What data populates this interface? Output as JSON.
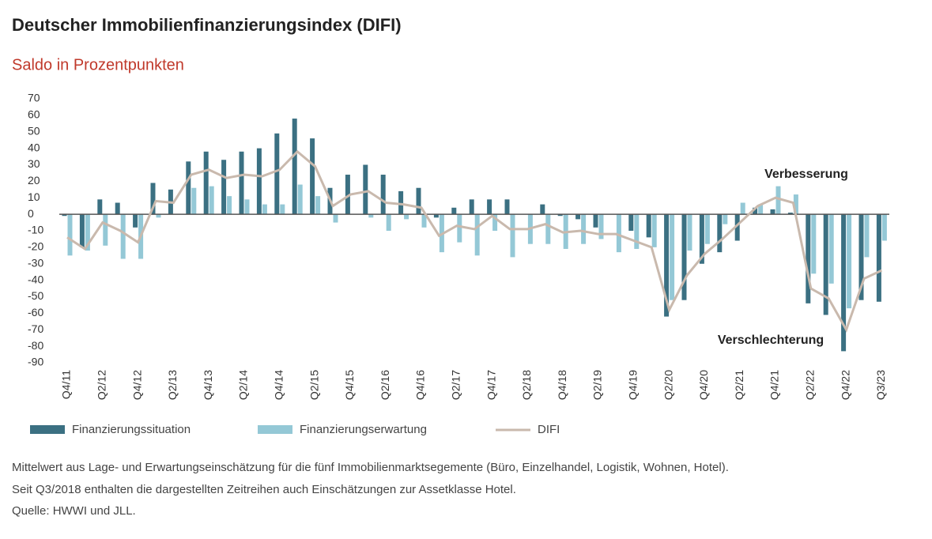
{
  "chart_data": {
    "type": "bar_line",
    "title": "Deutscher Immobilienfinanzierungsindex (DIFI)",
    "subtitle": "Saldo in Prozentpunkten",
    "categories": [
      "Q4/11",
      null,
      "Q2/12",
      null,
      "Q4/12",
      null,
      "Q2/13",
      null,
      "Q4/13",
      null,
      "Q2/14",
      null,
      "Q4/14",
      null,
      "Q2/15",
      null,
      "Q4/15",
      null,
      "Q2/16",
      null,
      "Q4/16",
      null,
      "Q2/17",
      null,
      "Q4/17",
      null,
      "Q2/18",
      null,
      "Q4/18",
      null,
      "Q2/19",
      null,
      "Q4/19",
      null,
      "Q2/20",
      null,
      "Q4/20",
      null,
      "Q2/21",
      null,
      "Q4/21",
      null,
      "Q2/22",
      null,
      "Q4/22",
      null,
      "Q3/23"
    ],
    "series": [
      {
        "name": "Finanzierungssituation",
        "kind": "bar",
        "color": "#3b7082",
        "values": [
          -1,
          -20,
          9,
          7,
          -8,
          19,
          15,
          32,
          38,
          33,
          38,
          40,
          49,
          58,
          46,
          16,
          24,
          30,
          24,
          14,
          16,
          -2,
          4,
          9,
          9,
          9,
          0,
          6,
          -1,
          -3,
          -8,
          0,
          -10,
          -14,
          -62,
          -52,
          -30,
          -23,
          -16,
          4,
          3,
          1,
          -54,
          -61,
          -83,
          -52,
          -53
        ]
      },
      {
        "name": "Finanzierungserwartung",
        "kind": "bar",
        "color": "#94c8d6",
        "values": [
          -25,
          -22,
          -19,
          -27,
          -27,
          -2,
          0,
          16,
          17,
          11,
          9,
          6,
          6,
          18,
          11,
          -5,
          0,
          -2,
          -10,
          -3,
          -8,
          -23,
          -17,
          -25,
          -10,
          -26,
          -18,
          -18,
          -21,
          -18,
          -15,
          -23,
          -21,
          -20,
          -52,
          -22,
          -18,
          -6,
          7,
          6,
          17,
          12,
          -36,
          -42,
          -57,
          -26,
          -16
        ]
      },
      {
        "name": "DIFI",
        "kind": "line",
        "color": "#c9b9ad",
        "values": [
          -14,
          -21,
          -5,
          -10,
          -17,
          8,
          7,
          24,
          27,
          22,
          24,
          23,
          27,
          38,
          29,
          5,
          12,
          14,
          7,
          6,
          4,
          -13,
          -7,
          -9,
          -1,
          -9,
          -9,
          -6,
          -11,
          -10,
          -12,
          -12,
          -16,
          -20,
          -58,
          -37,
          -24,
          -15,
          -5,
          5,
          10,
          7,
          -45,
          -51,
          -70,
          -39,
          -34
        ]
      }
    ],
    "ylim": [
      -90,
      70
    ],
    "yticks": [
      -90,
      -80,
      -70,
      -60,
      -50,
      -40,
      -30,
      -20,
      -10,
      0,
      10,
      20,
      30,
      40,
      50,
      60,
      70
    ],
    "annotations": [
      "Verbesserung",
      "Verschlechterung"
    ],
    "notes": [
      "Mittelwert aus Lage- und Erwartungseinschätzung für die fünf Immobilienmarktsegemente (Büro, Einzelhandel, Logistik, Wohnen, Hotel).",
      "Seit Q3/2018 enthalten die dargestellten Zeitreihen auch Einschätzungen zur Assetklasse Hotel.",
      "Quelle: HWWI und JLL."
    ]
  }
}
